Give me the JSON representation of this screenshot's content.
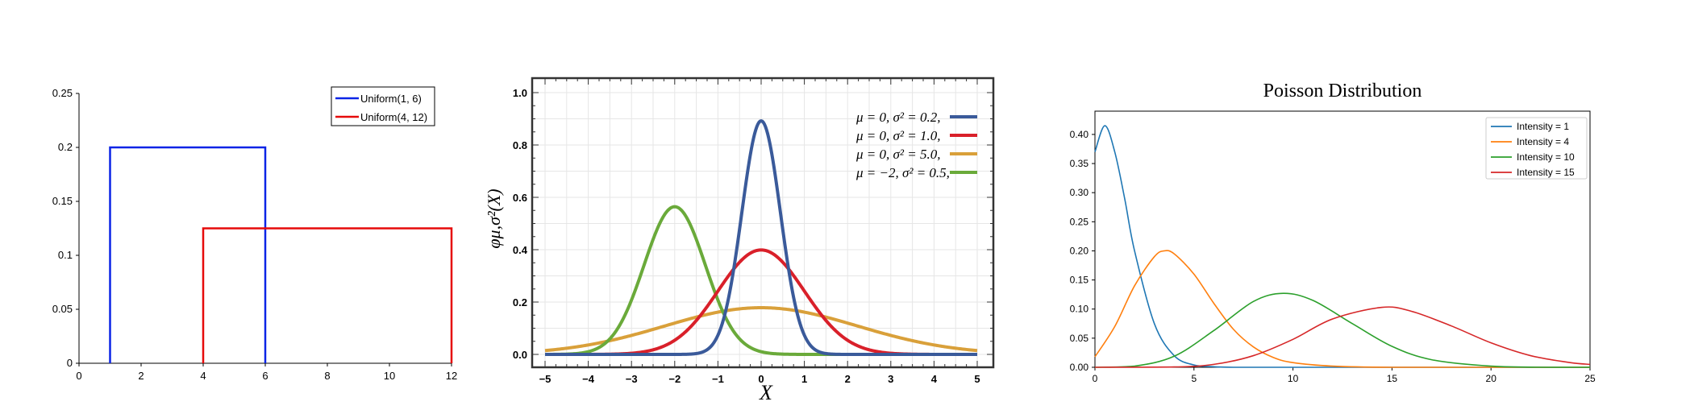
{
  "chart_data": [
    {
      "type": "line",
      "title": "",
      "xlabel": "",
      "ylabel": "",
      "xlim": [
        0,
        12
      ],
      "ylim": [
        0,
        0.25
      ],
      "x_ticks": [
        0,
        2,
        4,
        6,
        8,
        10,
        12
      ],
      "y_ticks": [
        0,
        0.05,
        0.1,
        0.15,
        0.2,
        0.25
      ],
      "y_tick_labels": [
        "0",
        "0.05",
        "0.1",
        "0.15",
        "0.2",
        "0.25"
      ],
      "grid": false,
      "legend_position": "top-right",
      "series": [
        {
          "name": "Uniform(1, 6)",
          "color": "#0a24e6",
          "x": [
            1,
            1,
            6,
            6
          ],
          "y": [
            0,
            0.2,
            0.2,
            0
          ]
        },
        {
          "name": "Uniform(4, 12)",
          "color": "#e60a0a",
          "x": [
            4,
            4,
            12,
            12
          ],
          "y": [
            0,
            0.125,
            0.125,
            0
          ]
        }
      ]
    },
    {
      "type": "line",
      "title": "",
      "xlabel": "X",
      "ylabel": "φμ,σ²(X)",
      "xlim": [
        -5,
        5
      ],
      "ylim": [
        0,
        1.0
      ],
      "x_ticks": [
        -5,
        -4,
        -3,
        -2,
        -1,
        0,
        1,
        2,
        3,
        4,
        5
      ],
      "y_ticks": [
        0.0,
        0.2,
        0.4,
        0.6,
        0.8,
        1.0
      ],
      "y_tick_labels": [
        "0.0",
        "0.2",
        "0.4",
        "0.6",
        "0.8",
        "1.0"
      ],
      "grid": true,
      "legend_position": "top-right",
      "series": [
        {
          "name": "μ = 0,   σ² = 0.2,",
          "color": "#3a5a9a",
          "mu": 0,
          "sigma2": 0.2
        },
        {
          "name": "μ = 0,   σ² = 1.0,",
          "color": "#d9202a",
          "mu": 0,
          "sigma2": 1.0
        },
        {
          "name": "μ = 0,   σ² = 5.0,",
          "color": "#d9a03a",
          "mu": 0,
          "sigma2": 5.0
        },
        {
          "name": "μ = −2, σ² = 0.5,",
          "color": "#6aaa3a",
          "mu": -2,
          "sigma2": 0.5
        }
      ]
    },
    {
      "type": "line",
      "title": "Poisson Distribution",
      "xlabel": "",
      "ylabel": "",
      "xlim": [
        0,
        25
      ],
      "ylim": [
        0,
        0.44
      ],
      "x_ticks": [
        0,
        5,
        10,
        15,
        20,
        25
      ],
      "y_ticks": [
        0.0,
        0.05,
        0.1,
        0.15,
        0.2,
        0.25,
        0.3,
        0.35,
        0.4
      ],
      "y_tick_labels": [
        "0.00",
        "0.05",
        "0.10",
        "0.15",
        "0.20",
        "0.25",
        "0.30",
        "0.35",
        "0.40"
      ],
      "grid": false,
      "legend_position": "top-right",
      "series": [
        {
          "name": "Intensity = 1",
          "color": "#1f77b4",
          "lambda": 1,
          "x": [
            0,
            0.5,
            1,
            1.5,
            2,
            3,
            4,
            5,
            6,
            7,
            8,
            10,
            15,
            20,
            25
          ],
          "y": [
            0.37,
            0.415,
            0.37,
            0.29,
            0.2,
            0.075,
            0.02,
            0.004,
            0.001,
            0,
            0,
            0,
            0,
            0,
            0
          ]
        },
        {
          "name": "Intensity = 4",
          "color": "#ff7f0e",
          "lambda": 4,
          "x": [
            0,
            1,
            2,
            3,
            3.5,
            4,
            5,
            6,
            7,
            8,
            9,
            10,
            12,
            15,
            20,
            25
          ],
          "y": [
            0.018,
            0.07,
            0.14,
            0.19,
            0.2,
            0.195,
            0.16,
            0.11,
            0.065,
            0.035,
            0.017,
            0.008,
            0.002,
            0,
            0,
            0
          ]
        },
        {
          "name": "Intensity = 10",
          "color": "#2ca02c",
          "lambda": 10,
          "x": [
            0,
            2,
            4,
            6,
            8,
            9.5,
            11,
            13,
            15,
            17,
            20,
            23,
            25
          ],
          "y": [
            0,
            0.002,
            0.019,
            0.063,
            0.113,
            0.127,
            0.115,
            0.075,
            0.036,
            0.013,
            0.002,
            0,
            0
          ]
        },
        {
          "name": "Intensity = 15",
          "color": "#d62728",
          "lambda": 15,
          "x": [
            0,
            4,
            6,
            8,
            10,
            12,
            14.5,
            16,
            18,
            20,
            22,
            24,
            25
          ],
          "y": [
            0,
            0.0006,
            0.005,
            0.02,
            0.048,
            0.083,
            0.103,
            0.096,
            0.071,
            0.042,
            0.02,
            0.008,
            0.005
          ]
        }
      ]
    }
  ]
}
